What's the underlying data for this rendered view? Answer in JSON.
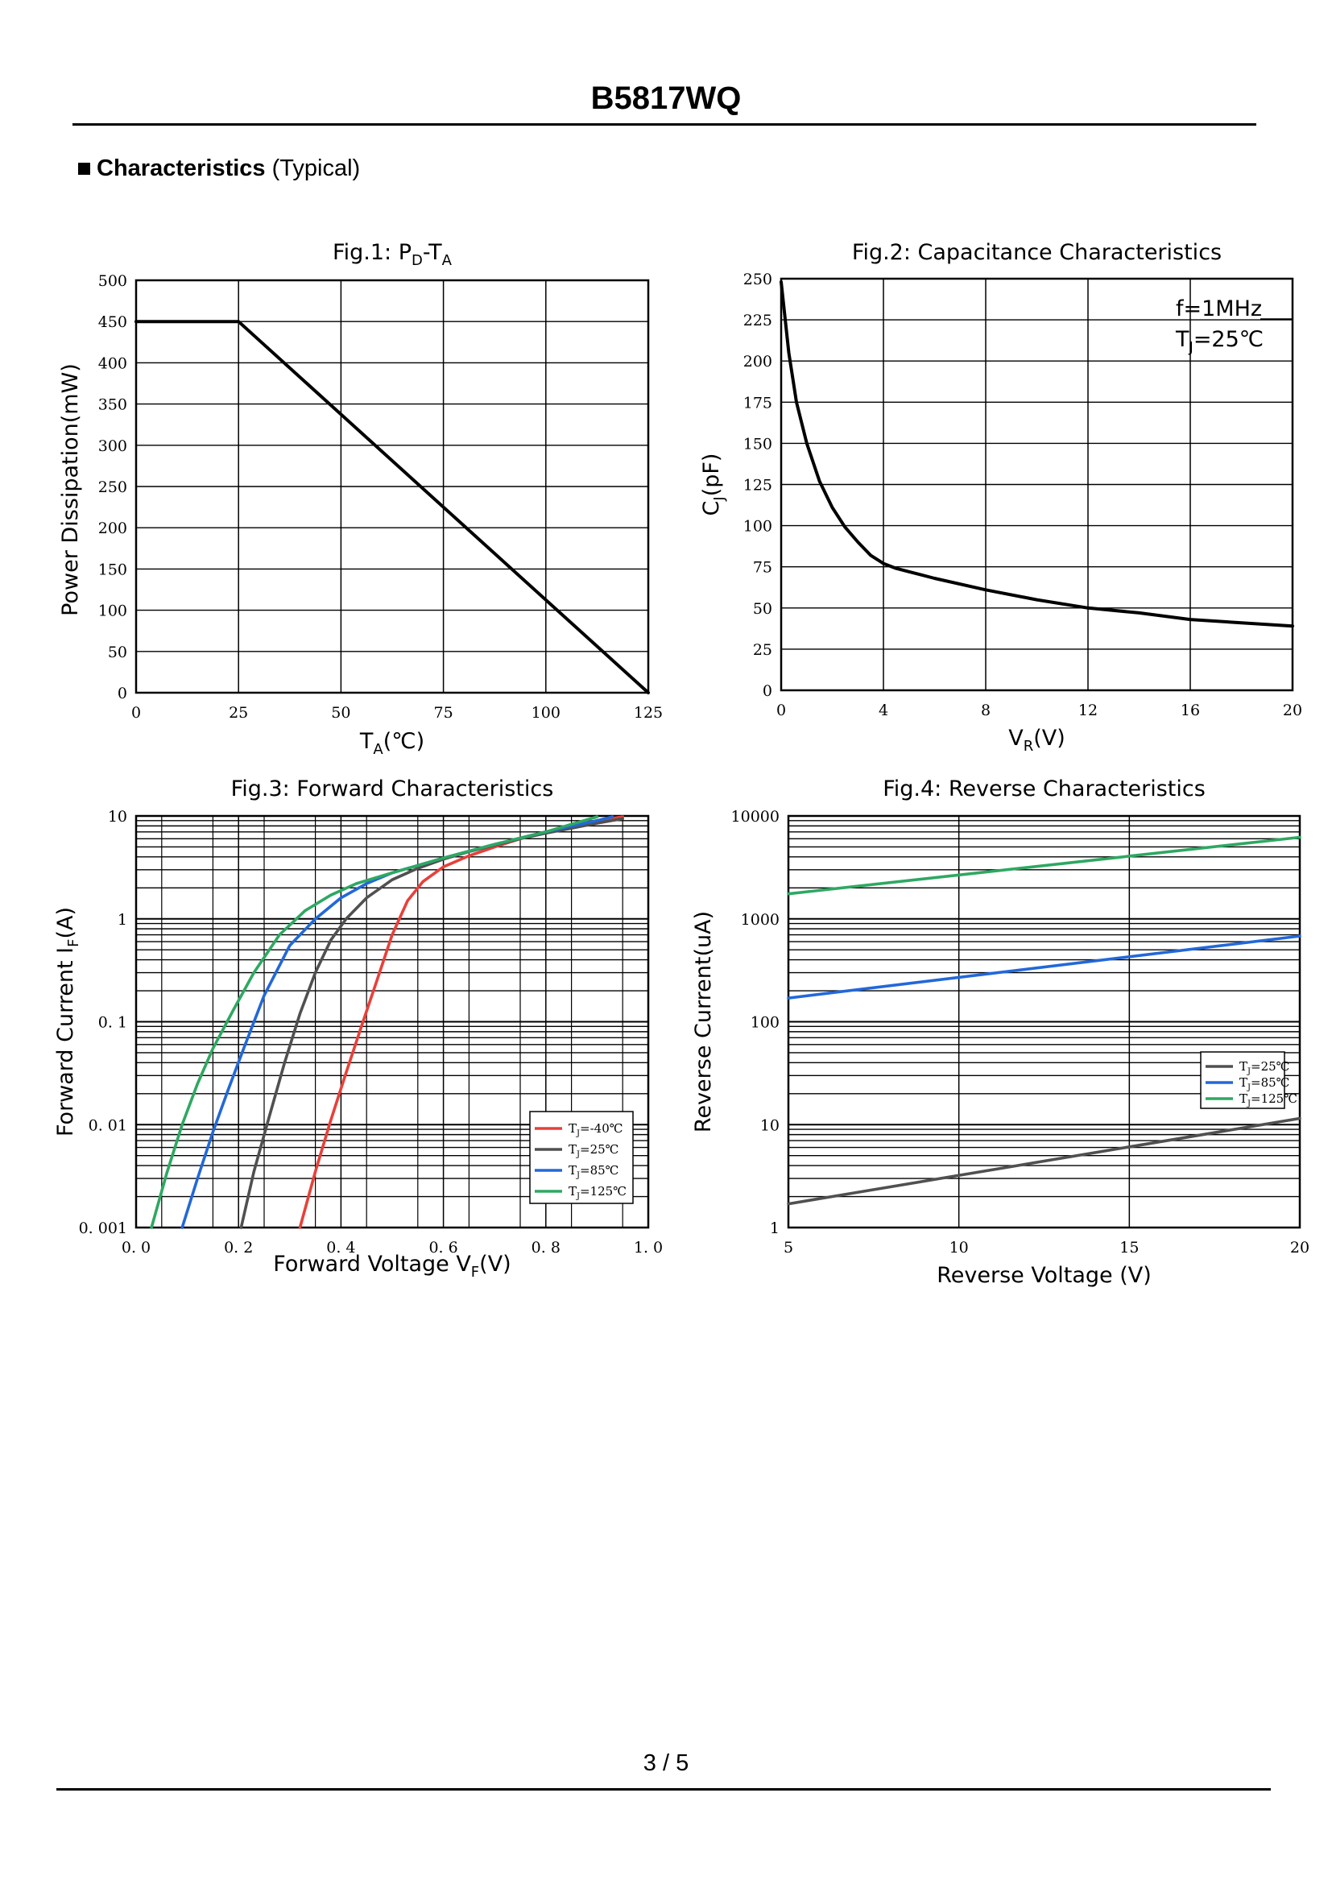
{
  "header": {
    "part_number": "B5817WQ"
  },
  "section": {
    "heading": "Characteristics",
    "qualifier": "(Typical)"
  },
  "footer": {
    "page": "3 / 5"
  },
  "chart_data": [
    {
      "id": "fig1",
      "type": "line",
      "title": {
        "main": "Fig.1: P",
        "sub1": "D",
        "mid": "-T",
        "sub2": "A"
      },
      "xlabel": {
        "main": "T",
        "sub": "A",
        "unit": "(℃)"
      },
      "ylabel": "Power Dissipation(mW)",
      "xlim": [
        0,
        125
      ],
      "ylim": [
        0,
        500
      ],
      "xticks": [
        0,
        25,
        50,
        75,
        100,
        125
      ],
      "yticks": [
        0,
        50,
        100,
        150,
        200,
        250,
        300,
        350,
        400,
        450,
        500
      ],
      "series": [
        {
          "name": "PD",
          "color": "#000000",
          "x": [
            0,
            25,
            125
          ],
          "y": [
            450,
            450,
            0
          ]
        }
      ]
    },
    {
      "id": "fig2",
      "type": "line",
      "title": {
        "main": "Fig.2: Capacitance Characteristics"
      },
      "xlabel": {
        "main": "V",
        "sub": "R",
        "unit": "(V)"
      },
      "ylabel": {
        "main": "C",
        "sub": "J",
        "unit": "(pF)"
      },
      "xlim": [
        0,
        20
      ],
      "ylim": [
        0,
        250
      ],
      "xticks": [
        0,
        4,
        8,
        12,
        16,
        20
      ],
      "yticks": [
        0,
        25,
        50,
        75,
        100,
        125,
        150,
        175,
        200,
        225,
        250
      ],
      "annotations": {
        "freq": "f=1MHz",
        "temp_main": "T",
        "temp_sub": "J",
        "temp_val": "=25℃"
      },
      "series": [
        {
          "name": "CJ",
          "color": "#000000",
          "x": [
            0,
            0.3,
            0.6,
            1.0,
            1.5,
            2.0,
            2.5,
            3.0,
            3.5,
            4.0,
            4.5,
            5,
            6,
            8,
            10,
            12,
            14,
            16,
            18,
            20
          ],
          "y": [
            248,
            205,
            175,
            150,
            127,
            111,
            99,
            90,
            82,
            77,
            74,
            72,
            68,
            61,
            55,
            50,
            47,
            43,
            41,
            39
          ]
        }
      ]
    },
    {
      "id": "fig3",
      "type": "line",
      "title": {
        "main": "Fig.3: Forward Characteristics"
      },
      "xlabel": {
        "main": "Forward Voltage V",
        "sub": "F",
        "unit": "(V)"
      },
      "ylabel": {
        "main": "Forward Current I",
        "sub": "F",
        "unit": "(A)"
      },
      "xlim": [
        0,
        1.0
      ],
      "ylim": [
        0.001,
        10
      ],
      "yscale": "log",
      "xticks": [
        0,
        0.2,
        0.4,
        0.6,
        0.8,
        1.0
      ],
      "xticklabels": [
        "0. 0",
        "0. 2",
        "0. 4",
        "0. 6",
        "0. 8",
        "1. 0"
      ],
      "yticks": [
        0.001,
        0.01,
        0.1,
        1,
        10
      ],
      "yticklabels": [
        "0. 001",
        "0. 01",
        "0. 1",
        "1",
        "10"
      ],
      "legend_position": "bottom-right",
      "series": [
        {
          "name_main": "T",
          "name_sub": "J",
          "name_val": "=-40℃",
          "color": "#e8403a",
          "x": [
            0.32,
            0.35,
            0.38,
            0.41,
            0.44,
            0.47,
            0.5,
            0.53,
            0.56,
            0.6,
            0.65,
            0.7,
            0.75,
            0.8,
            0.85,
            0.9,
            0.95
          ],
          "y": [
            0.001,
            0.0035,
            0.011,
            0.032,
            0.09,
            0.25,
            0.7,
            1.5,
            2.3,
            3.2,
            4.1,
            5.0,
            6.0,
            7.0,
            8.0,
            9.0,
            9.8
          ]
        },
        {
          "name_main": "T",
          "name_sub": "J",
          "name_val": "=25℃",
          "color": "#505050",
          "x": [
            0.205,
            0.23,
            0.26,
            0.29,
            0.32,
            0.35,
            0.38,
            0.41,
            0.45,
            0.5,
            0.55,
            0.6,
            0.65,
            0.7,
            0.75,
            0.8,
            0.85,
            0.9,
            0.95
          ],
          "y": [
            0.001,
            0.0035,
            0.012,
            0.04,
            0.12,
            0.3,
            0.62,
            1.0,
            1.6,
            2.4,
            3.1,
            3.8,
            4.5,
            5.2,
            6.0,
            6.8,
            7.6,
            8.5,
            9.4
          ]
        },
        {
          "name_main": "T",
          "name_sub": "J",
          "name_val": "=85℃",
          "color": "#2268d8",
          "x": [
            0.09,
            0.12,
            0.15,
            0.18,
            0.21,
            0.25,
            0.3,
            0.35,
            0.4,
            0.45,
            0.5,
            0.55,
            0.6,
            0.7,
            0.8,
            0.9,
            0.93
          ],
          "y": [
            0.001,
            0.003,
            0.0085,
            0.022,
            0.055,
            0.18,
            0.55,
            1.0,
            1.6,
            2.2,
            2.8,
            3.3,
            3.9,
            5.3,
            7.0,
            9.0,
            9.8
          ]
        },
        {
          "name_main": "T",
          "name_sub": "J",
          "name_val": "=125℃",
          "color": "#2ea862",
          "x": [
            0.03,
            0.06,
            0.09,
            0.12,
            0.15,
            0.19,
            0.23,
            0.28,
            0.33,
            0.38,
            0.43,
            0.5,
            0.55,
            0.6,
            0.7,
            0.8,
            0.85,
            0.9
          ],
          "y": [
            0.001,
            0.0034,
            0.01,
            0.025,
            0.055,
            0.13,
            0.3,
            0.7,
            1.2,
            1.7,
            2.2,
            2.8,
            3.3,
            3.9,
            5.3,
            7.0,
            8.3,
            9.8
          ]
        }
      ]
    },
    {
      "id": "fig4",
      "type": "line",
      "title": {
        "main": "Fig.4: Reverse Characteristics"
      },
      "xlabel": {
        "main": "Reverse Voltage (V)"
      },
      "ylabel": {
        "main": "Reverse Current(uA)"
      },
      "xlim": [
        5,
        20
      ],
      "ylim": [
        1,
        10000
      ],
      "yscale": "log",
      "xticks": [
        5,
        10,
        15,
        20
      ],
      "yticks": [
        1,
        10,
        100,
        1000,
        10000
      ],
      "legend_position": "right-middle",
      "series": [
        {
          "name_main": "T",
          "name_sub": "J",
          "name_val": "=25℃",
          "color": "#505050",
          "x": [
            5,
            20
          ],
          "y": [
            1.7,
            11.5
          ]
        },
        {
          "name_main": "T",
          "name_sub": "J",
          "name_val": "=85℃",
          "color": "#2268d8",
          "x": [
            5,
            20
          ],
          "y": [
            170,
            680
          ]
        },
        {
          "name_main": "T",
          "name_sub": "J",
          "name_val": "=125℃",
          "color": "#2ea862",
          "x": [
            5,
            20
          ],
          "y": [
            1750,
            6200
          ]
        }
      ]
    }
  ]
}
